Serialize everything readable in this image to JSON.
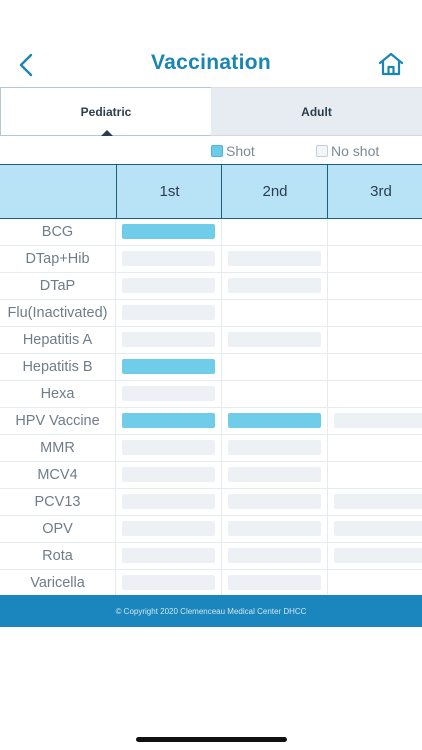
{
  "header": {
    "title": "Vaccination",
    "back_icon": "chevron-left-icon",
    "home_icon": "home-icon",
    "accent": "#1a86b3"
  },
  "tabs": [
    {
      "label": "Pediatric",
      "active": true
    },
    {
      "label": "Adult",
      "active": false
    }
  ],
  "legend": {
    "shot_label": "Shot",
    "noshot_label": "No shot",
    "shot_color": "#70cdea",
    "noshot_color": "#edf1f5"
  },
  "table": {
    "columns": [
      "1st",
      "2nd",
      "3rd"
    ],
    "rows": [
      {
        "name": "BCG",
        "doses": [
          "shot",
          "",
          ""
        ]
      },
      {
        "name": "DTap+Hib",
        "doses": [
          "noshot",
          "noshot",
          ""
        ]
      },
      {
        "name": "DTaP",
        "doses": [
          "noshot",
          "noshot",
          ""
        ]
      },
      {
        "name": "Flu(Inactivated)",
        "doses": [
          "noshot",
          "",
          ""
        ]
      },
      {
        "name": "Hepatitis A",
        "doses": [
          "noshot",
          "noshot",
          ""
        ]
      },
      {
        "name": "Hepatitis B",
        "doses": [
          "shot",
          "",
          ""
        ]
      },
      {
        "name": "Hexa",
        "doses": [
          "noshot",
          "",
          ""
        ]
      },
      {
        "name": "HPV Vaccine",
        "doses": [
          "shot",
          "shot",
          "noshot"
        ]
      },
      {
        "name": "MMR",
        "doses": [
          "noshot",
          "noshot",
          ""
        ]
      },
      {
        "name": "MCV4",
        "doses": [
          "noshot",
          "noshot",
          ""
        ]
      },
      {
        "name": "PCV13",
        "doses": [
          "noshot",
          "noshot",
          "noshot"
        ]
      },
      {
        "name": "OPV",
        "doses": [
          "noshot",
          "noshot",
          "noshot"
        ]
      },
      {
        "name": "Rota",
        "doses": [
          "noshot",
          "noshot",
          "noshot"
        ]
      },
      {
        "name": "Varicella",
        "doses": [
          "noshot",
          "noshot",
          ""
        ]
      }
    ]
  },
  "footer": {
    "copyright": "© Copyright 2020 Clemenceau Medical Center DHCC"
  }
}
